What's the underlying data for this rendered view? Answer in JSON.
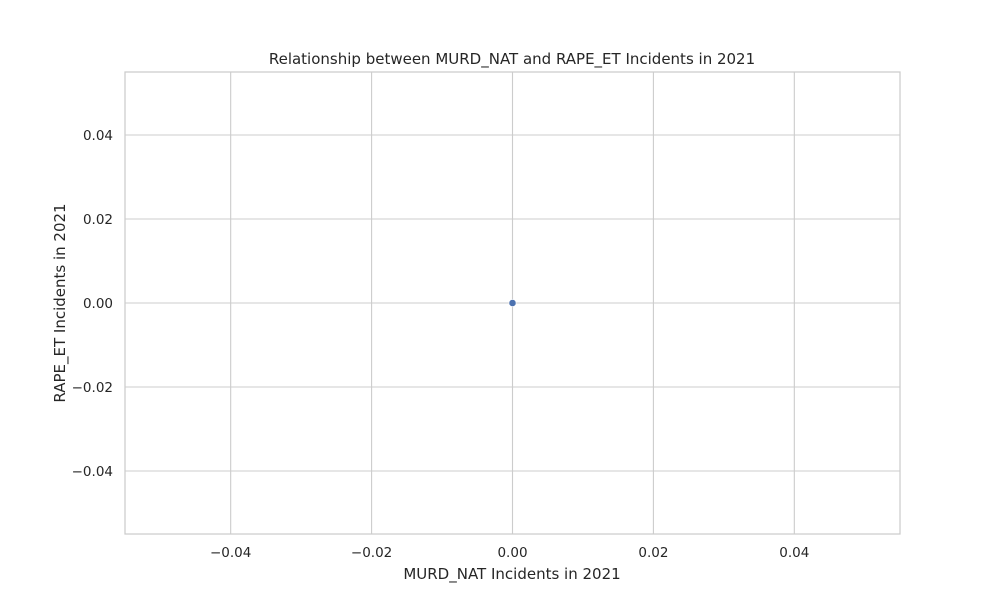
{
  "chart_data": {
    "type": "scatter",
    "title": "Relationship between MURD_NAT and RAPE_ET Incidents in 2021",
    "xlabel": "MURD_NAT Incidents in 2021",
    "ylabel": "RAPE_ET Incidents in 2021",
    "xlim": [
      -0.055,
      0.055
    ],
    "ylim": [
      -0.055,
      0.055
    ],
    "xticks": [
      -0.04,
      -0.02,
      0.0,
      0.02,
      0.04
    ],
    "yticks": [
      -0.04,
      -0.02,
      0.0,
      0.02,
      0.04
    ],
    "xtick_labels": [
      "−0.04",
      "−0.02",
      "0.00",
      "0.02",
      "0.04"
    ],
    "ytick_labels": [
      "−0.04",
      "−0.02",
      "0.00",
      "0.02",
      "0.04"
    ],
    "grid": true,
    "points": [
      {
        "x": 0.0,
        "y": 0.0
      }
    ],
    "colors": {
      "point": "#4c72b0",
      "grid": "#cccccc",
      "frame": "#cccccc",
      "background": "#ffffff"
    }
  }
}
